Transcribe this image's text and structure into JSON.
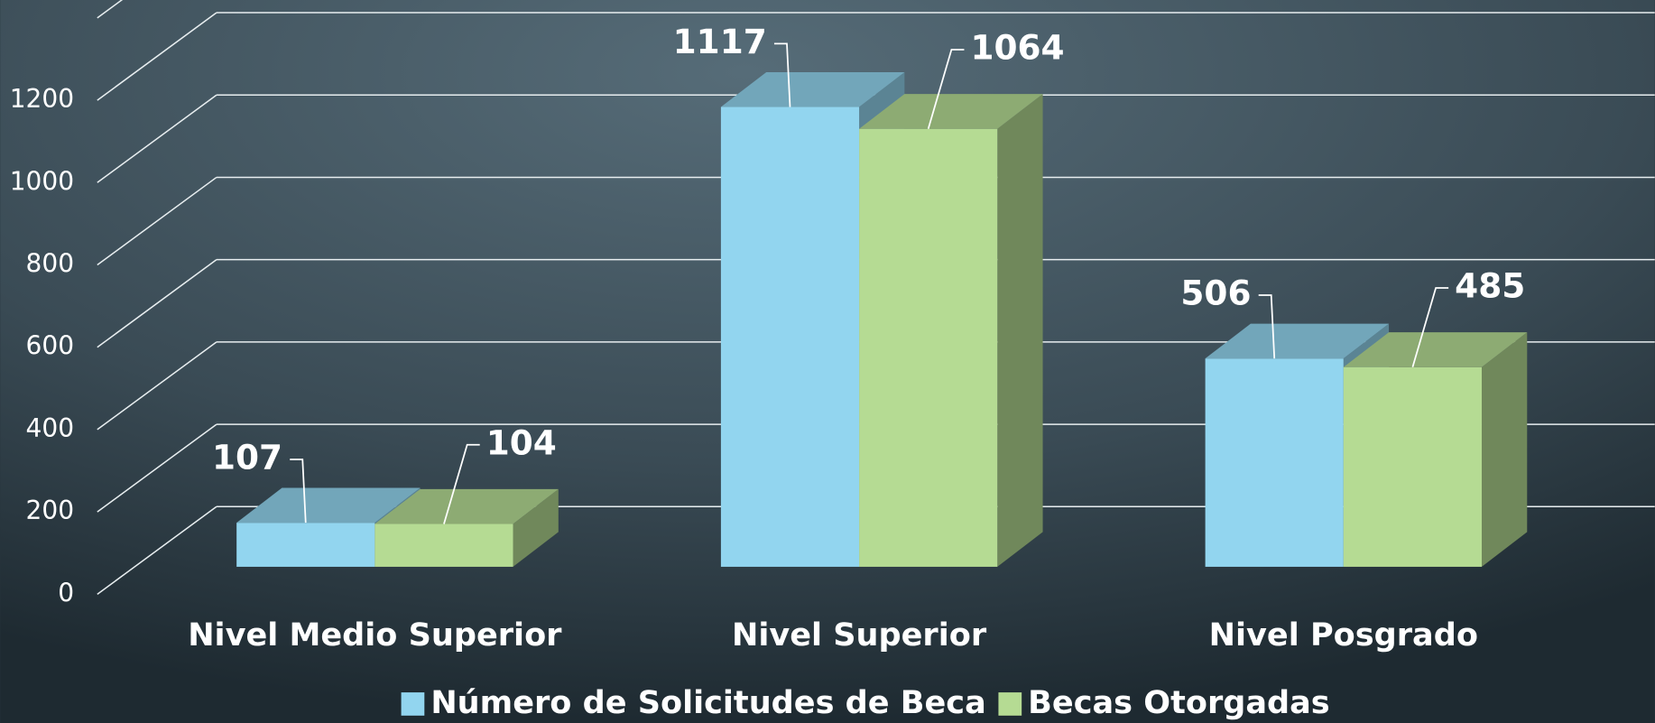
{
  "chart_data": {
    "type": "bar3d",
    "categories": [
      "Nivel Medio Superior",
      "Nivel Superior",
      "Nivel Posgrado"
    ],
    "series": [
      {
        "name": "Número de Solicitudes de Beca",
        "color": "#92d5ef",
        "values": [
          107,
          1117,
          506
        ]
      },
      {
        "name": "Becas Otorgadas",
        "color": "#b5db93",
        "values": [
          104,
          1064,
          485
        ]
      }
    ],
    "ylim": [
      0,
      1400
    ],
    "yticks": [
      0,
      200,
      400,
      600,
      800,
      1000,
      1200
    ],
    "grid": true,
    "legend": "bottom"
  }
}
